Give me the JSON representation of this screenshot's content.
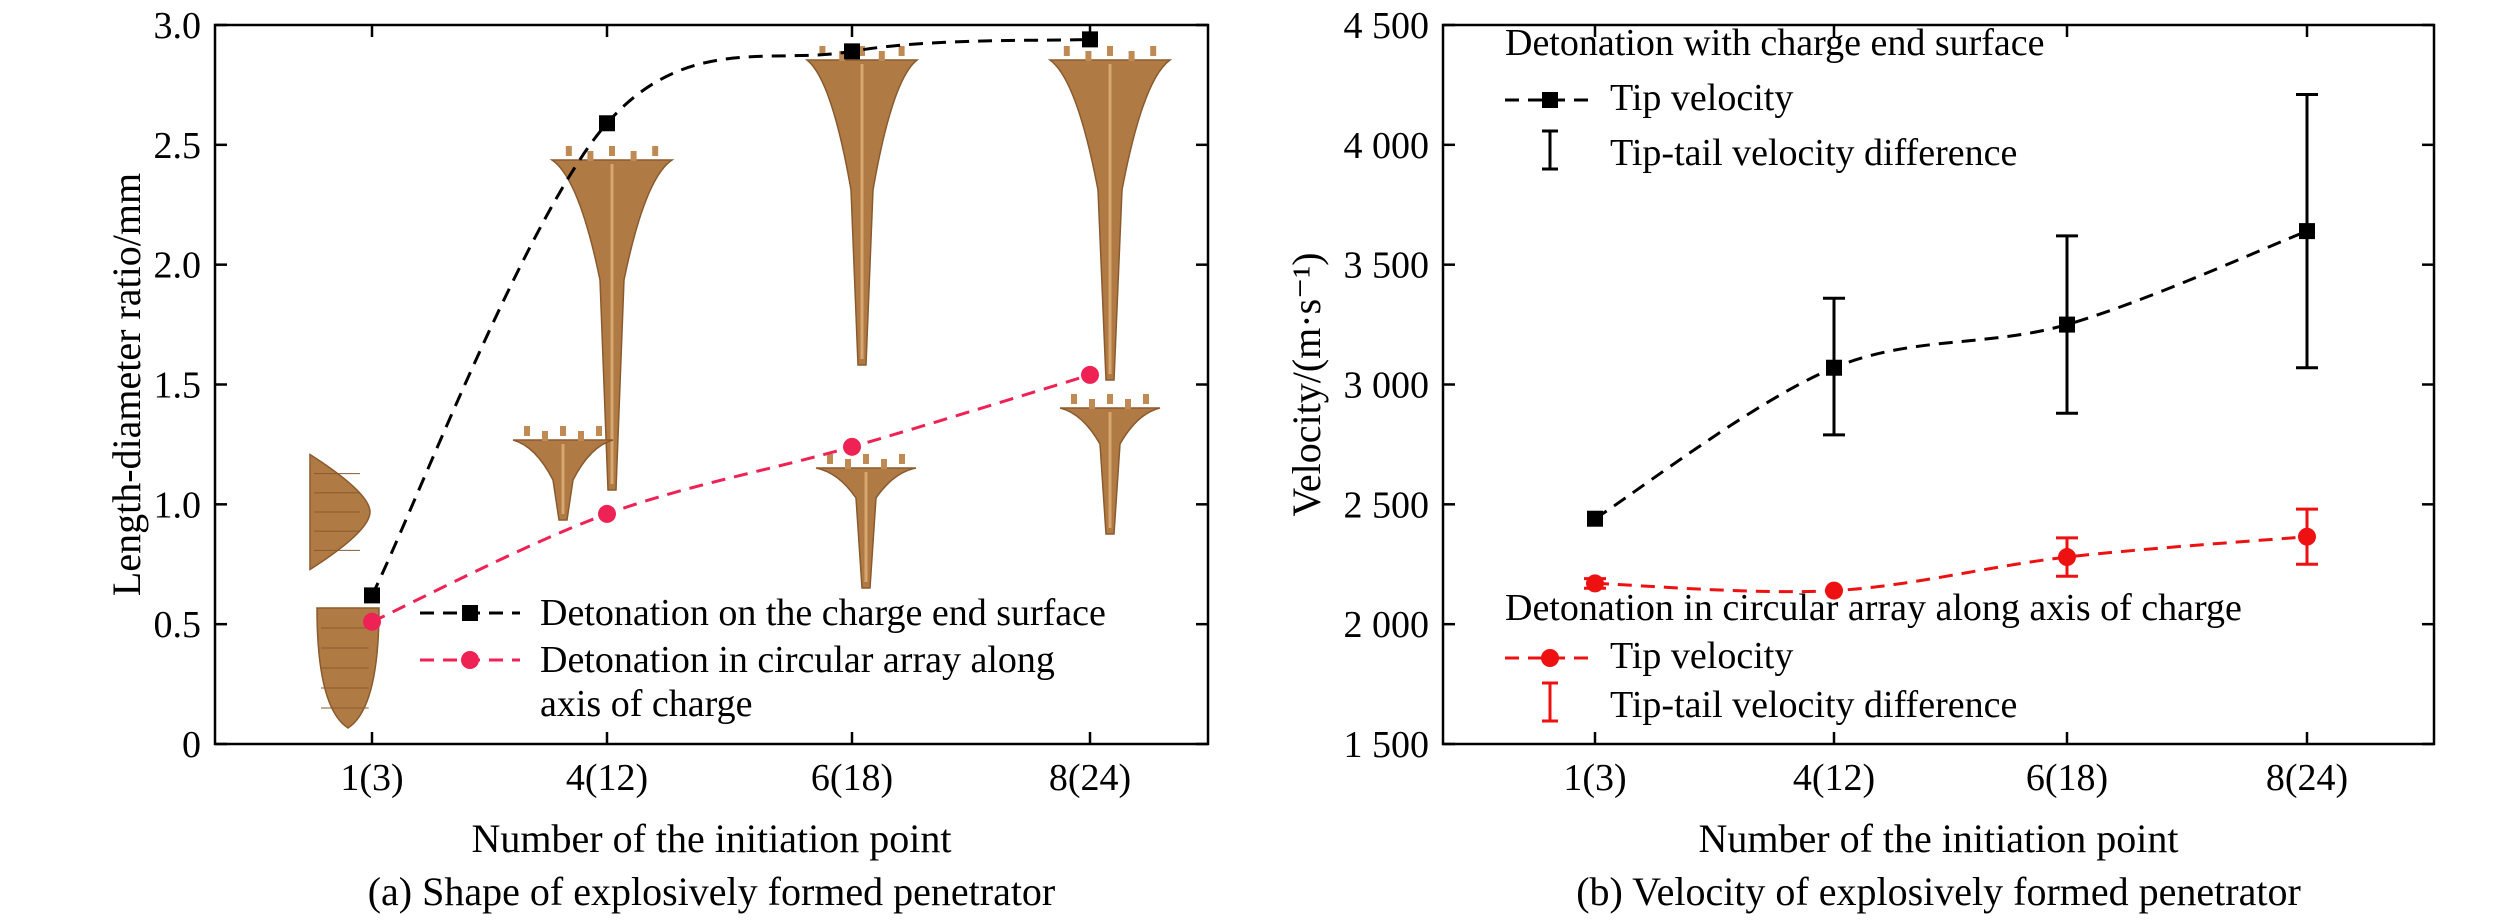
{
  "chart_data": [
    {
      "type": "line",
      "panel": "a",
      "caption": "(a) Shape of explosively formed penetrator",
      "xlabel": "Number of the initiation point",
      "ylabel": "Length-diameter ratio/mm",
      "categories": [
        "1(3)",
        "4(12)",
        "6(18)",
        "8(24)"
      ],
      "ylim": [
        0,
        3.0
      ],
      "ytick_labels": [
        "0",
        "0.5",
        "1.0",
        "1.5",
        "2.0",
        "2.5",
        "3.0"
      ],
      "legend_position": "lower-right",
      "series": [
        {
          "name": "Detonation on the charge end surface",
          "color": "#000000",
          "marker": "square",
          "values": [
            0.62,
            2.59,
            2.89,
            2.94
          ]
        },
        {
          "name": "Detonation in circular array along axis of charge",
          "legend_lines": [
            "Detonation in circular array along",
            "axis of charge"
          ],
          "color": "#ee2255",
          "marker": "circle",
          "values": [
            0.51,
            0.96,
            1.24,
            1.54
          ]
        }
      ],
      "annotations": "Penetrator shape images beside each data point"
    },
    {
      "type": "line",
      "panel": "b",
      "caption": "(b) Velocity of explosively formed penetrator",
      "xlabel": "Number of the initiation point",
      "ylabel": "Velocity/(m·s⁻¹)",
      "categories": [
        "1(3)",
        "4(12)",
        "6(18)",
        "8(24)"
      ],
      "ylim": [
        1500,
        4500
      ],
      "ytick_labels": [
        "1 500",
        "2 000",
        "2 500",
        "3 000",
        "3 500",
        "4 000",
        "4 500"
      ],
      "legend_groups": [
        {
          "title": "Detonation with charge end surface",
          "line_label": "Tip velocity",
          "error_label": "Tip-tail velocity difference",
          "color": "#000000"
        },
        {
          "title": "Detonation in circular array along axis of charge",
          "line_label": "Tip velocity",
          "error_label": "Tip-tail velocity difference",
          "color": "#ee1111"
        }
      ],
      "series": [
        {
          "name": "Detonation with charge end surface",
          "color": "#000000",
          "marker": "square",
          "values": [
            2440,
            3070,
            3250,
            3640
          ],
          "error_low": [
            2440,
            2790,
            2880,
            3070
          ],
          "error_high": [
            2440,
            3360,
            3620,
            4210
          ]
        },
        {
          "name": "Detonation in circular array along axis of charge",
          "color": "#ee1111",
          "marker": "circle",
          "values": [
            2170,
            2140,
            2280,
            2365
          ],
          "error_low": [
            2150,
            2140,
            2200,
            2250
          ],
          "error_high": [
            2190,
            2140,
            2360,
            2480
          ]
        }
      ]
    }
  ]
}
